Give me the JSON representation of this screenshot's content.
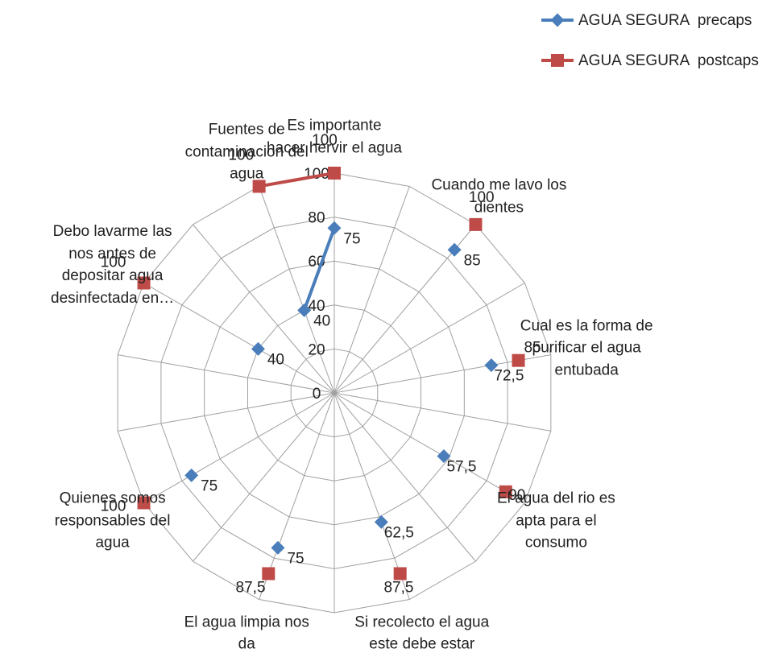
{
  "chart_data": {
    "type": "radar",
    "categories": [
      "Es importante hacer hervir el agua",
      null,
      "Cuando me lavo los dientes",
      null,
      "Cual es la forma de purificar el agua entubada",
      null,
      "El agua del rio es apta para el consumo",
      null,
      "Si recolecto el agua este debe estar",
      null,
      "El agua limpia nos da",
      null,
      "Quienes somos responsables del agua",
      null,
      null,
      "Debo lavarme las nos antes de depositar agua desinfectada en…",
      null,
      "Fuentes de contaminacion del agua"
    ],
    "series": [
      {
        "name": "AGUA SEGURA  precaps",
        "color": "#4a7ebb",
        "marker": "diamond",
        "values": [
          75,
          null,
          85,
          null,
          72.5,
          null,
          57.5,
          null,
          62.5,
          null,
          75,
          null,
          75,
          null,
          null,
          40,
          null,
          40
        ],
        "value_labels": [
          "75",
          null,
          "85",
          null,
          "72,5",
          null,
          "57,5",
          null,
          "62,5",
          null,
          "75",
          null,
          "75",
          null,
          null,
          "40",
          null,
          "40"
        ]
      },
      {
        "name": "AGUA SEGURA  postcaps",
        "color": "#be4b48",
        "marker": "square",
        "values": [
          100,
          null,
          100,
          null,
          85,
          null,
          90,
          null,
          87.5,
          null,
          87.5,
          null,
          100,
          null,
          null,
          100,
          null,
          100
        ],
        "value_labels": [
          "100",
          null,
          "100",
          null,
          "85",
          null,
          "90",
          null,
          "87,5",
          null,
          "87,5",
          null,
          "100",
          null,
          null,
          "100",
          null,
          "100"
        ]
      }
    ],
    "ylim": [
      0,
      100
    ],
    "yticks": [
      0,
      20,
      40,
      60,
      80,
      100
    ],
    "grid": true,
    "legend": "top-right"
  }
}
